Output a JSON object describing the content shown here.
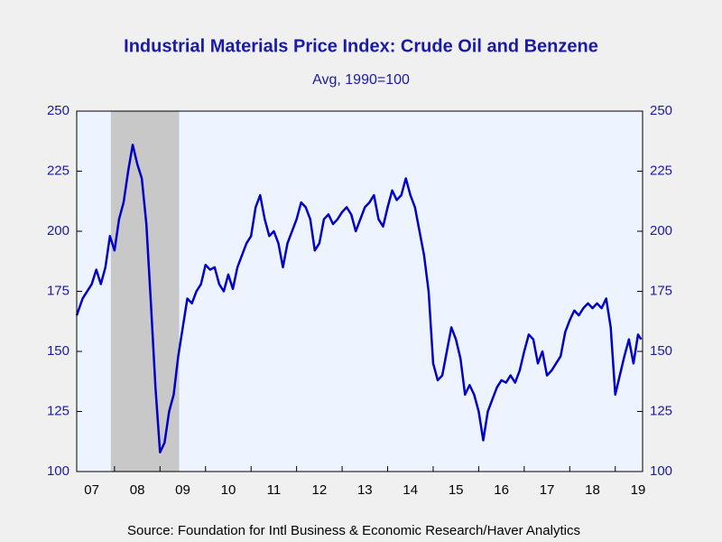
{
  "chart_data": {
    "type": "line",
    "title": "Industrial Materials Price Index: Crude Oil and Benzene",
    "subtitle": "Avg, 1990=100",
    "source": "Source:  Foundation for Intl Business & Economic Research/Haver Analytics",
    "xlim": [
      2007.17,
      2019.6
    ],
    "xticks": [
      {
        "value": 2007,
        "label": "07"
      },
      {
        "value": 2008,
        "label": "08"
      },
      {
        "value": 2009,
        "label": "09"
      },
      {
        "value": 2010,
        "label": "10"
      },
      {
        "value": 2011,
        "label": "11"
      },
      {
        "value": 2012,
        "label": "12"
      },
      {
        "value": 2013,
        "label": "13"
      },
      {
        "value": 2014,
        "label": "14"
      },
      {
        "value": 2015,
        "label": "15"
      },
      {
        "value": 2016,
        "label": "16"
      },
      {
        "value": 2017,
        "label": "17"
      },
      {
        "value": 2018,
        "label": "18"
      },
      {
        "value": 2019,
        "label": "19"
      }
    ],
    "ylim": [
      100,
      250
    ],
    "yticks": [
      100,
      125,
      150,
      175,
      200,
      225,
      250
    ],
    "y2lim": [
      100,
      250
    ],
    "y2ticks": [
      100,
      125,
      150,
      175,
      200,
      225,
      250
    ],
    "shaded": [
      [
        2007.92,
        2009.42
      ]
    ],
    "shade_color": "#c8c8c8",
    "x": [
      2007.17,
      2007.3,
      2007.5,
      2007.6,
      2007.7,
      2007.8,
      2007.9,
      2008.0,
      2008.1,
      2008.2,
      2008.3,
      2008.4,
      2008.5,
      2008.6,
      2008.7,
      2008.8,
      2008.9,
      2009.0,
      2009.1,
      2009.2,
      2009.3,
      2009.4,
      2009.5,
      2009.6,
      2009.7,
      2009.8,
      2009.9,
      2010.0,
      2010.1,
      2010.2,
      2010.3,
      2010.4,
      2010.5,
      2010.6,
      2010.7,
      2010.8,
      2010.9,
      2011.0,
      2011.1,
      2011.2,
      2011.3,
      2011.4,
      2011.5,
      2011.6,
      2011.7,
      2011.8,
      2011.9,
      2012.0,
      2012.1,
      2012.2,
      2012.3,
      2012.4,
      2012.5,
      2012.6,
      2012.7,
      2012.8,
      2012.9,
      2013.0,
      2013.1,
      2013.2,
      2013.3,
      2013.4,
      2013.5,
      2013.6,
      2013.7,
      2013.8,
      2013.9,
      2014.0,
      2014.1,
      2014.2,
      2014.3,
      2014.4,
      2014.5,
      2014.6,
      2014.7,
      2014.8,
      2014.9,
      2015.0,
      2015.1,
      2015.2,
      2015.3,
      2015.4,
      2015.5,
      2015.6,
      2015.7,
      2015.8,
      2015.9,
      2016.0,
      2016.1,
      2016.2,
      2016.3,
      2016.4,
      2016.5,
      2016.6,
      2016.7,
      2016.8,
      2016.9,
      2017.0,
      2017.1,
      2017.2,
      2017.3,
      2017.4,
      2017.5,
      2017.6,
      2017.7,
      2017.8,
      2017.9,
      2018.0,
      2018.1,
      2018.2,
      2018.3,
      2018.4,
      2018.5,
      2018.6,
      2018.7,
      2018.8,
      2018.9,
      2019.0,
      2019.1,
      2019.2,
      2019.3,
      2019.4,
      2019.5,
      2019.57
    ],
    "series": [
      {
        "name": "Crude Oil and Benzene",
        "color": "#0000c8",
        "values": [
          165,
          172,
          178,
          184,
          178,
          185,
          198,
          192,
          205,
          212,
          225,
          236,
          228,
          222,
          203,
          170,
          135,
          108,
          112,
          125,
          132,
          148,
          160,
          172,
          170,
          175,
          178,
          186,
          184,
          185,
          178,
          175,
          182,
          176,
          185,
          190,
          195,
          198,
          210,
          215,
          205,
          198,
          200,
          195,
          185,
          195,
          200,
          205,
          212,
          210,
          205,
          192,
          195,
          205,
          207,
          203,
          205,
          208,
          210,
          207,
          200,
          205,
          210,
          212,
          215,
          205,
          202,
          210,
          217,
          213,
          215,
          222,
          215,
          210,
          200,
          190,
          175,
          145,
          138,
          140,
          150,
          160,
          155,
          147,
          132,
          136,
          132,
          125,
          113,
          125,
          130,
          135,
          138,
          137,
          140,
          137,
          142,
          150,
          157,
          155,
          145,
          150,
          140,
          142,
          145,
          148,
          158,
          163,
          167,
          165,
          168,
          170,
          168,
          170,
          168,
          172,
          160,
          132,
          140,
          148,
          155,
          145,
          157,
          155
        ]
      }
    ]
  }
}
